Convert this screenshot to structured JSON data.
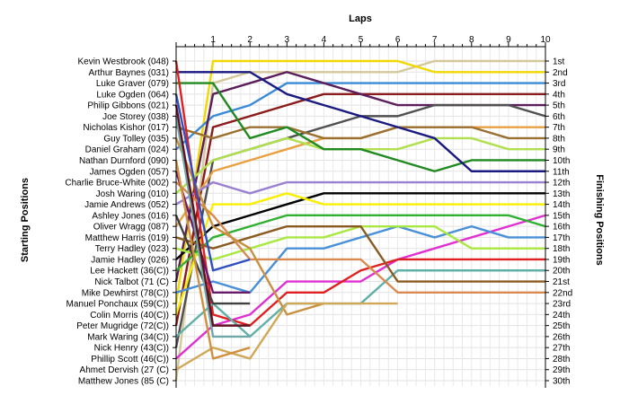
{
  "chart_data": {
    "type": "line",
    "title": "",
    "xlabel": "Laps",
    "ylabel": "Starting Positions",
    "y2label": "Finishing Positions",
    "x": [
      0,
      1,
      2,
      3,
      4,
      5,
      6,
      7,
      8,
      9,
      10
    ],
    "x_ticks": [
      "1",
      "2",
      "3",
      "4",
      "5",
      "6",
      "7",
      "8",
      "9",
      "10"
    ],
    "ylim": [
      1,
      30
    ],
    "y_inverted": true,
    "grid": true,
    "drivers": [
      "Kevin Westbrook (048)",
      "Arthur Baynes (031)",
      "Luke Graver (079)",
      "Luke Ogden (064)",
      "Philip Gibbons (021)",
      "Joe Storey (038)",
      "Nicholas Kishor (017)",
      "Guy Tolley (035)",
      "Daniel Graham (024)",
      "Nathan Durnford (090)",
      "James Ogden (057)",
      "Charlie Bruce-White (002)",
      "Josh Waring (010)",
      "Jamie Andrews (052)",
      "Ashley Jones (016)",
      "Oliver Wragg (087)",
      "Matthew Harris (019)",
      "Terry Hadley (023)",
      "Jamie Hadley (026)",
      "Lee Hackett (36(C))",
      "Nick Talbot (71 (C)",
      "Mike Dewhirst (78(C))",
      "Manuel Ponchaux (59(C))",
      "Colin Morris (40(C))",
      "Peter Mugridge (72(C))",
      "Mark Waring (34(C))",
      "Nick Henry (43(C))",
      "Phillip Scott (46(C))",
      "Ahmet Dervish (27 (C)",
      "Matthew Jones (85 (C)"
    ],
    "finish_labels": [
      "1st",
      "2nd",
      "3rd",
      "4th",
      "5th",
      "6th",
      "7th",
      "8th",
      "9th",
      "10th",
      "11th",
      "12th",
      "13th",
      "14th",
      "15th",
      "16th",
      "17th",
      "18th",
      "19th",
      "20th",
      "21st",
      "22nd",
      "23rd",
      "24th",
      "25th",
      "26th",
      "27th",
      "28th",
      "29th",
      "30th"
    ],
    "series": [
      {
        "color": "#d4c89a",
        "positions": [
          30,
          3,
          2,
          2,
          2,
          2,
          2,
          1,
          1,
          1,
          1
        ]
      },
      {
        "color": "#f0d800",
        "positions": [
          23,
          1,
          1,
          1,
          1,
          1,
          1,
          2,
          2,
          2,
          2
        ]
      },
      {
        "color": "#3a8ad8",
        "positions": [
          9,
          6,
          5,
          3,
          3,
          3,
          3,
          3,
          3,
          3,
          3
        ]
      },
      {
        "color": "#8b1a1a",
        "positions": [
          25,
          7,
          6,
          5,
          4,
          4,
          4,
          4,
          4,
          4,
          4
        ]
      },
      {
        "color": "#5a1e5a",
        "positions": [
          21,
          4,
          3,
          2,
          3,
          4,
          5,
          5,
          5,
          5,
          5
        ]
      },
      {
        "color": "#505050",
        "positions": [
          27,
          10,
          9,
          8,
          7,
          6,
          6,
          5,
          5,
          5,
          6
        ]
      },
      {
        "color": "#e8a040",
        "positions": [
          16,
          11,
          10,
          9,
          8,
          8,
          7,
          7,
          7,
          7,
          7
        ]
      },
      {
        "color": "#9a7030",
        "positions": [
          7,
          8,
          7,
          7,
          8,
          8,
          7,
          7,
          7,
          8,
          8
        ]
      },
      {
        "color": "#b0e050",
        "positions": [
          13,
          10,
          9,
          8,
          9,
          9,
          9,
          8,
          8,
          9,
          9
        ]
      },
      {
        "color": "#208a20",
        "positions": [
          3,
          3,
          8,
          7,
          9,
          9,
          10,
          11,
          10,
          10,
          10
        ]
      },
      {
        "color": "#1a1a80",
        "positions": [
          2,
          2,
          2,
          4,
          5,
          6,
          7,
          8,
          11,
          11,
          11
        ]
      },
      {
        "color": "#9a80d0",
        "positions": [
          14,
          12,
          13,
          12,
          12,
          12,
          12,
          12,
          12,
          12,
          12
        ]
      },
      {
        "color": "#000000",
        "positions": [
          19,
          16,
          15,
          14,
          13,
          13,
          13,
          13,
          13,
          13,
          13
        ]
      },
      {
        "color": "#f8f000",
        "positions": [
          24,
          14,
          14,
          13,
          14,
          14,
          14,
          14,
          14,
          14,
          14
        ]
      },
      {
        "color": "#e030d0",
        "positions": [
          28,
          25,
          24,
          21,
          21,
          21,
          19,
          18,
          17,
          16,
          15
        ]
      },
      {
        "color": "#30b030",
        "positions": [
          20,
          17,
          16,
          15,
          15,
          15,
          15,
          15,
          15,
          15,
          16
        ]
      },
      {
        "color": "#4a90d8",
        "positions": [
          22,
          21,
          22,
          18,
          18,
          17,
          16,
          17,
          16,
          17,
          17
        ]
      },
      {
        "color": "#a8e840",
        "positions": [
          18,
          19,
          18,
          17,
          17,
          16,
          16,
          16,
          18,
          18,
          18
        ]
      },
      {
        "color": "#e02020",
        "positions": [
          1,
          24,
          25,
          22,
          22,
          20,
          19,
          19,
          19,
          19,
          19
        ]
      },
      {
        "color": "#60b0a8",
        "positions": [
          26,
          23,
          26,
          23,
          23,
          23,
          20,
          20,
          20,
          20,
          20
        ]
      },
      {
        "color": "#8a5a20",
        "positions": [
          17,
          18,
          17,
          16,
          16,
          16,
          21,
          21,
          21,
          21,
          21
        ]
      },
      {
        "color": "#d88a50",
        "positions": [
          12,
          15,
          19,
          19,
          19,
          19,
          22,
          22,
          22,
          22,
          22
        ]
      },
      {
        "color": "#6a1a6a",
        "positions": [
          11,
          22,
          22
        ]
      },
      {
        "color": "#404040",
        "positions": [
          15,
          23,
          23
        ]
      },
      {
        "color": "#c89040",
        "positions": [
          8,
          16,
          18,
          24,
          23
        ]
      },
      {
        "color": "#d0a858",
        "positions": [
          29,
          27,
          28,
          23,
          23,
          23,
          23
        ]
      },
      {
        "color": "#70a8a8",
        "positions": [
          6,
          26,
          26
        ]
      },
      {
        "color": "#d09040",
        "positions": [
          10,
          28,
          27
        ]
      },
      {
        "color": "#3050c0",
        "positions": [
          4,
          20,
          19
        ]
      },
      {
        "color": "#601020",
        "positions": [
          5,
          25,
          25
        ]
      }
    ]
  }
}
